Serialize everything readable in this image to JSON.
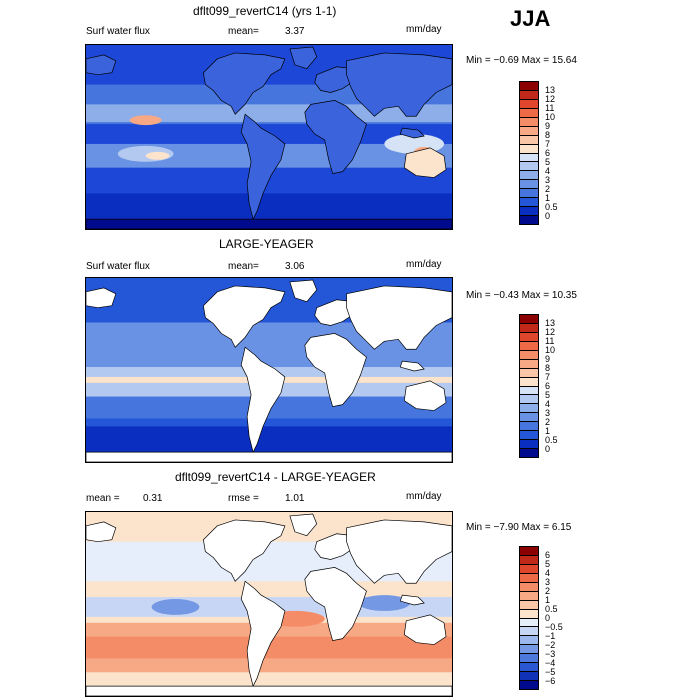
{
  "season": "JJA",
  "panels": [
    {
      "id": "model",
      "title": "dflt099_revertC14 (yrs 1-1)",
      "left_label": "Surf water flux",
      "stat_label": "mean=",
      "stat_value": "3.37",
      "units": "mm/day",
      "range_text": "Min =  −0.69 Max =  15.64",
      "ocean_pattern": "model",
      "land_fill": false,
      "colorbar": {
        "labels": [
          "13",
          "12",
          "11",
          "10",
          "9",
          "8",
          "7",
          "6",
          "5",
          "4",
          "3",
          "2",
          "1",
          "0.5",
          "0"
        ],
        "colors": [
          "#8b0000",
          "#c0281a",
          "#e0462c",
          "#ee6a46",
          "#f58c68",
          "#f7a985",
          "#f9c6a8",
          "#fbe3cc",
          "#d6e3f6",
          "#b3c9f0",
          "#8eaeea",
          "#6a92e4",
          "#4675dd",
          "#2456d8",
          "#0a2fc0",
          "#000a8c"
        ]
      }
    },
    {
      "id": "obs",
      "title": "LARGE-YEAGER",
      "left_label": "Surf water flux",
      "stat_label": "mean=",
      "stat_value": "3.06",
      "units": "mm/day",
      "range_text": "Min =  −0.43 Max =  10.35",
      "ocean_pattern": "obs",
      "land_fill": true,
      "colorbar": {
        "labels": [
          "13",
          "12",
          "11",
          "10",
          "9",
          "8",
          "7",
          "6",
          "5",
          "4",
          "3",
          "2",
          "1",
          "0.5",
          "0"
        ],
        "colors": [
          "#8b0000",
          "#c0281a",
          "#e0462c",
          "#ee6a46",
          "#f58c68",
          "#f7a985",
          "#f9c6a8",
          "#fbe3cc",
          "#d6e3f6",
          "#b3c9f0",
          "#8eaeea",
          "#6a92e4",
          "#4675dd",
          "#2456d8",
          "#0a2fc0",
          "#000a8c"
        ]
      }
    },
    {
      "id": "diff",
      "title": "dflt099_revertC14 - LARGE-YEAGER",
      "left_label": "mean =",
      "left_value": "0.31",
      "stat_label": "rmse =",
      "stat_value": "1.01",
      "units": "mm/day",
      "range_text": "Min =  −7.90 Max =   6.15",
      "ocean_pattern": "diff",
      "land_fill": true,
      "colorbar": {
        "labels": [
          "6",
          "5",
          "4",
          "3",
          "2",
          "1",
          "0.5",
          "0",
          "−0.5",
          "−1",
          "−2",
          "−3",
          "−4",
          "−5",
          "−6"
        ],
        "colors": [
          "#8b0000",
          "#c0281a",
          "#e0462c",
          "#ee6a46",
          "#f58c68",
          "#f7a985",
          "#f9c6a8",
          "#fbe3cc",
          "#e6eefb",
          "#c6d6f4",
          "#9db8ec",
          "#7498e4",
          "#4d78dc",
          "#2b56d2",
          "#0f32b8",
          "#000a8c"
        ]
      }
    }
  ]
}
